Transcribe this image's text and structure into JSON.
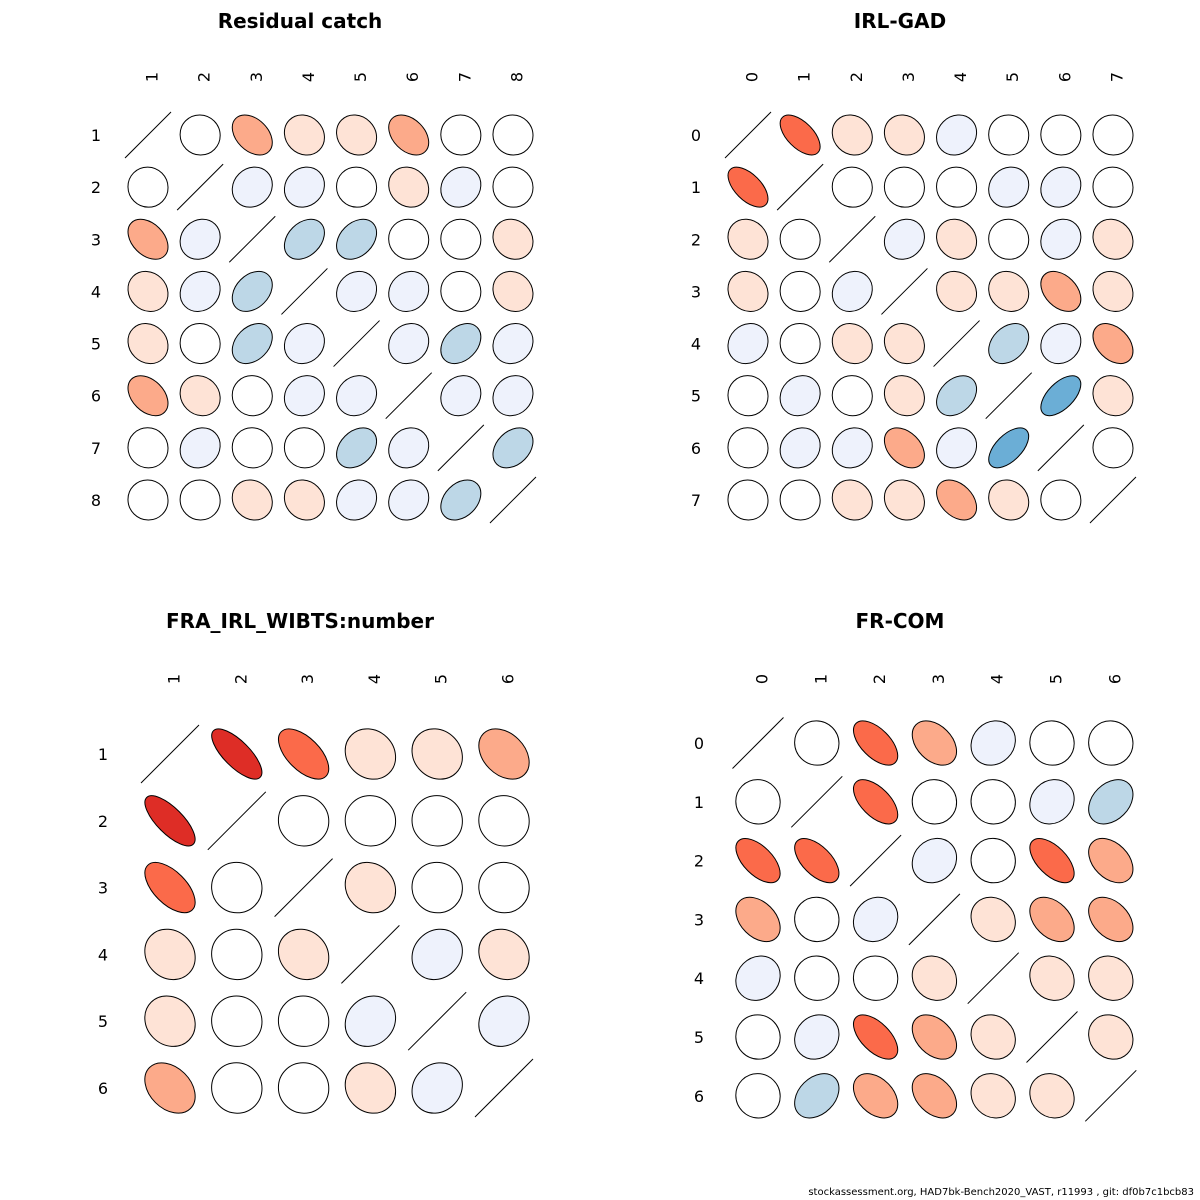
{
  "footer": "stockassessment.org, HAD7bk-Bench2020_VAST, r11993 , git: df0b7c1bcb83",
  "colors": {
    "positive_scale": [
      "#ffffff",
      "#fee3d6",
      "#fcaa8a",
      "#fb6a4a",
      "#de2d26"
    ],
    "negative_scale": [
      "#ffffff",
      "#eef2fc",
      "#bdd7e7",
      "#6baed6",
      "#3182bd"
    ],
    "outline": "#000000"
  },
  "chart_data": [
    {
      "type": "heatmap",
      "title": "Residual catch",
      "labels": [
        "1",
        "2",
        "3",
        "4",
        "5",
        "6",
        "7",
        "8"
      ],
      "matrix": [
        [
          1,
          0,
          -0.4,
          -0.15,
          -0.15,
          -0.4,
          0,
          0
        ],
        [
          0,
          1,
          0.15,
          0.15,
          0,
          -0.15,
          0.15,
          0
        ],
        [
          -0.4,
          0.15,
          1,
          0.35,
          0.35,
          0,
          0,
          -0.15
        ],
        [
          -0.15,
          0.15,
          0.35,
          1,
          0.15,
          0.15,
          0,
          -0.15
        ],
        [
          -0.15,
          0,
          0.35,
          0.15,
          1,
          0.15,
          0.35,
          0.15
        ],
        [
          -0.4,
          -0.15,
          0,
          0.15,
          0.15,
          1,
          0.15,
          0.15
        ],
        [
          0,
          0.15,
          0,
          0,
          0.35,
          0.15,
          1,
          0.35
        ],
        [
          0,
          0,
          -0.15,
          -0.15,
          0.15,
          0.15,
          0.35,
          1
        ]
      ]
    },
    {
      "type": "heatmap",
      "title": "IRL-GAD",
      "labels": [
        "0",
        "1",
        "2",
        "3",
        "4",
        "5",
        "6",
        "7"
      ],
      "matrix": [
        [
          1,
          -0.6,
          -0.15,
          -0.15,
          0.15,
          0,
          0,
          0
        ],
        [
          -0.6,
          1,
          0,
          0,
          0,
          0.15,
          0.15,
          0
        ],
        [
          -0.15,
          0,
          1,
          0.15,
          -0.15,
          0,
          0.15,
          -0.15
        ],
        [
          -0.15,
          0,
          0.15,
          1,
          -0.15,
          -0.15,
          -0.4,
          -0.15
        ],
        [
          0.15,
          0,
          -0.15,
          -0.15,
          1,
          0.35,
          0.15,
          -0.4
        ],
        [
          0,
          0.15,
          0,
          -0.15,
          0.35,
          1,
          0.6,
          -0.15
        ],
        [
          0,
          0.15,
          0.15,
          -0.4,
          0.15,
          0.6,
          1,
          0
        ],
        [
          0,
          0,
          -0.15,
          -0.15,
          -0.4,
          -0.15,
          0,
          1
        ]
      ]
    },
    {
      "type": "heatmap",
      "title": "FRA_IRL_WIBTS:number",
      "labels": [
        "1",
        "2",
        "3",
        "4",
        "5",
        "6"
      ],
      "matrix": [
        [
          1,
          -0.75,
          -0.6,
          -0.15,
          -0.15,
          -0.35
        ],
        [
          -0.75,
          1,
          0,
          0,
          0,
          0
        ],
        [
          -0.6,
          0,
          1,
          -0.15,
          0,
          0
        ],
        [
          -0.15,
          0,
          -0.15,
          1,
          0.15,
          -0.15
        ],
        [
          -0.15,
          0,
          0,
          0.15,
          1,
          0.15
        ],
        [
          -0.35,
          0,
          0,
          -0.15,
          0.15,
          1
        ]
      ]
    },
    {
      "type": "heatmap",
      "title": "FR-COM",
      "labels": [
        "0",
        "1",
        "2",
        "3",
        "4",
        "5",
        "6"
      ],
      "matrix": [
        [
          1,
          0,
          -0.6,
          -0.4,
          0.15,
          0,
          0
        ],
        [
          0,
          1,
          -0.6,
          0,
          0,
          0.15,
          0.35
        ],
        [
          -0.6,
          -0.6,
          1,
          0.15,
          0,
          -0.6,
          -0.4
        ],
        [
          -0.4,
          0,
          0.15,
          1,
          -0.15,
          -0.4,
          -0.4
        ],
        [
          0.15,
          0,
          0,
          -0.15,
          1,
          -0.15,
          -0.15
        ],
        [
          0,
          0.15,
          -0.6,
          -0.4,
          -0.15,
          1,
          -0.15
        ],
        [
          0,
          0.35,
          -0.4,
          -0.4,
          -0.15,
          -0.15,
          1
        ]
      ]
    }
  ]
}
